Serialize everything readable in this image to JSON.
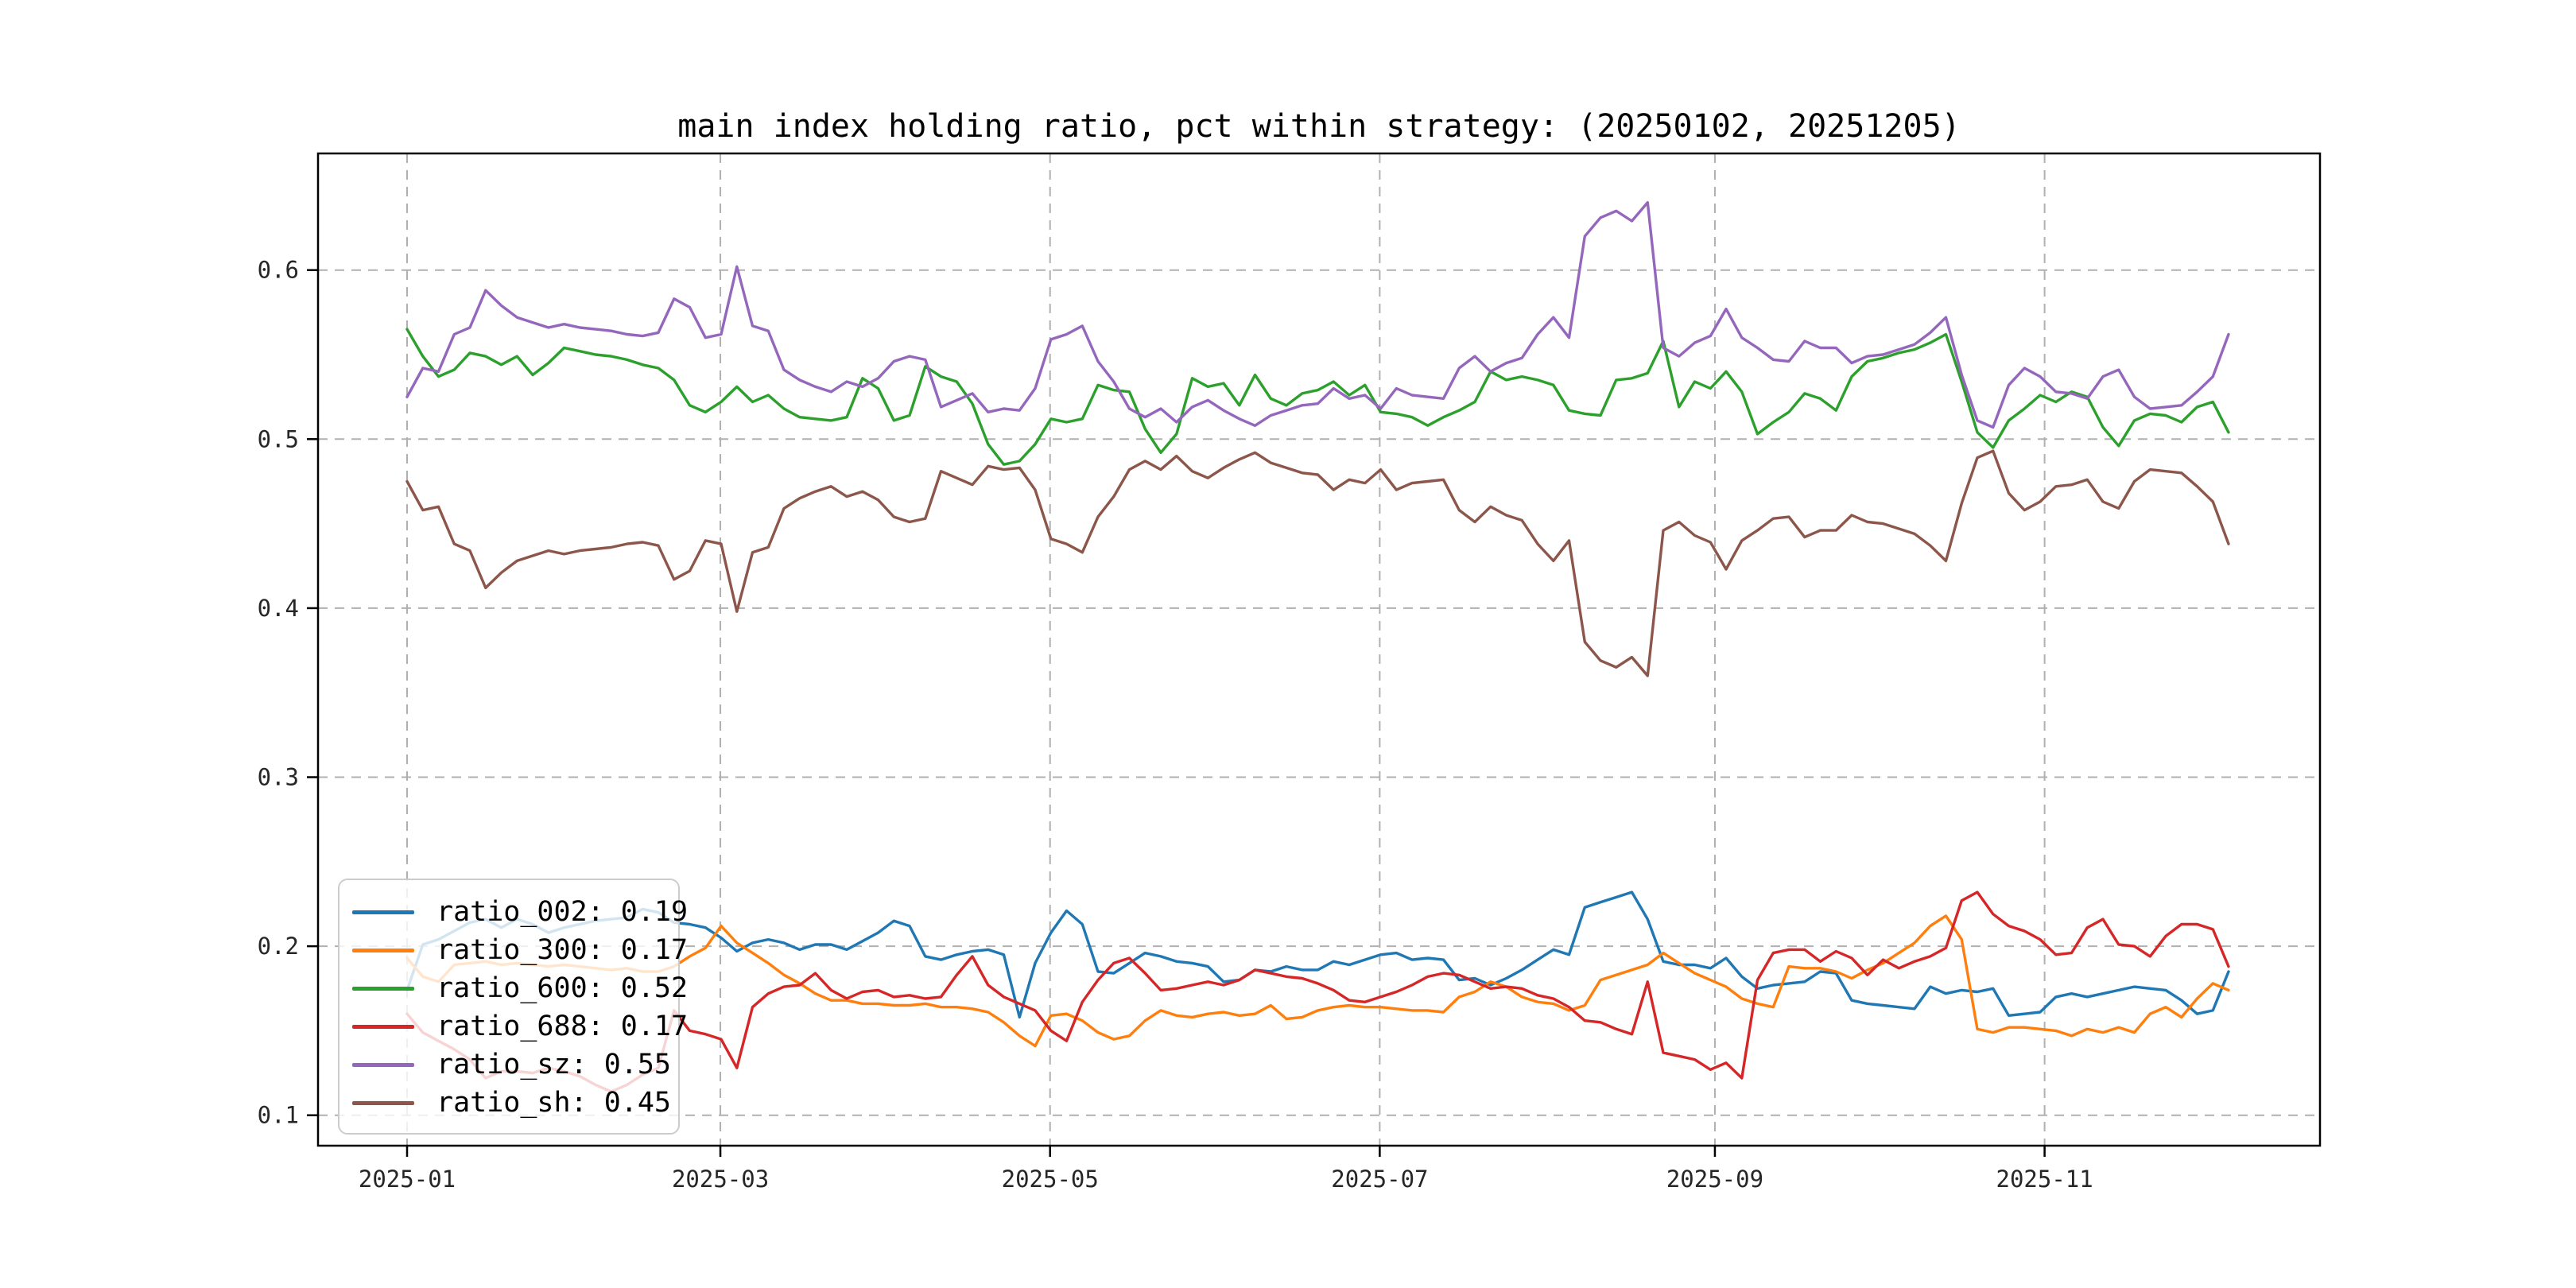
{
  "title": "main index holding ratio, pct within strategy: (20250102, 20251205)",
  "legend": {
    "position": "lower left",
    "items": [
      {
        "label": "ratio_002: 0.19",
        "color": "#1f77b4"
      },
      {
        "label": "ratio_300: 0.17",
        "color": "#ff7f0e"
      },
      {
        "label": "ratio_600: 0.52",
        "color": "#2ca02c"
      },
      {
        "label": "ratio_688: 0.17",
        "color": "#d62728"
      },
      {
        "label": "ratio_sz: 0.55",
        "color": "#9467bd"
      },
      {
        "label": "ratio_sh: 0.45",
        "color": "#8c564b"
      }
    ]
  },
  "chart_data": {
    "type": "line",
    "title": "main index holding ratio, pct within strategy: (20250102, 20251205)",
    "date_range": [
      "20250102",
      "20251205"
    ],
    "grid": true,
    "ylim": [
      0.082,
      0.669
    ],
    "y_ticks": [
      {
        "value": 0.1,
        "label": "0.1"
      },
      {
        "value": 0.2,
        "label": "0.2"
      },
      {
        "value": 0.3,
        "label": "0.3"
      },
      {
        "value": 0.4,
        "label": "0.4"
      },
      {
        "value": 0.5,
        "label": "0.5"
      },
      {
        "value": 0.6,
        "label": "0.6"
      }
    ],
    "x_ticks": [
      {
        "f": 0.0,
        "label": "2025-01"
      },
      {
        "f": 0.172,
        "label": "2025-03"
      },
      {
        "f": 0.353,
        "label": "2025-05"
      },
      {
        "f": 0.534,
        "label": "2025-07"
      },
      {
        "f": 0.718,
        "label": "2025-09"
      },
      {
        "f": 0.899,
        "label": "2025-11"
      }
    ],
    "series": [
      {
        "name": "ratio_002",
        "legend_label": "ratio_002: 0.19",
        "color": "#1f77b4",
        "values": [
          0.174,
          0.201,
          0.204,
          0.209,
          0.214,
          0.216,
          0.211,
          0.216,
          0.213,
          0.208,
          0.211,
          0.213,
          0.215,
          0.216,
          0.217,
          0.222,
          0.22,
          0.214,
          0.213,
          0.211,
          0.205,
          0.197,
          0.202,
          0.204,
          0.202,
          0.198,
          0.201,
          0.201,
          0.198,
          0.203,
          0.208,
          0.215,
          0.212,
          0.194,
          0.192,
          0.195,
          0.197,
          0.198,
          0.195,
          0.158,
          0.19,
          0.208,
          0.221,
          0.213,
          0.185,
          0.184,
          0.19,
          0.196,
          0.194,
          0.191,
          0.19,
          0.188,
          0.179,
          0.18,
          0.186,
          0.185,
          0.188,
          0.186,
          0.186,
          0.191,
          0.189,
          0.192,
          0.195,
          0.196,
          0.192,
          0.193,
          0.192,
          0.18,
          0.181,
          0.177,
          0.181,
          0.186,
          0.192,
          0.198,
          0.195,
          0.223,
          0.226,
          0.229,
          0.232,
          0.216,
          0.191,
          0.189,
          0.189,
          0.187,
          0.193,
          0.182,
          0.175,
          0.177,
          0.178,
          0.179,
          0.185,
          0.184,
          0.168,
          0.166,
          0.165,
          0.164,
          0.163,
          0.176,
          0.172,
          0.174,
          0.173,
          0.175,
          0.159,
          0.16,
          0.161,
          0.17,
          0.172,
          0.17,
          0.172,
          0.174,
          0.176,
          0.175,
          0.174,
          0.168,
          0.16,
          0.162,
          0.185
        ]
      },
      {
        "name": "ratio_300",
        "legend_label": "ratio_300: 0.17",
        "color": "#ff7f0e",
        "values": [
          0.193,
          0.182,
          0.179,
          0.189,
          0.19,
          0.191,
          0.189,
          0.19,
          0.189,
          0.188,
          0.189,
          0.188,
          0.187,
          0.186,
          0.187,
          0.185,
          0.185,
          0.188,
          0.194,
          0.199,
          0.212,
          0.202,
          0.196,
          0.19,
          0.183,
          0.178,
          0.172,
          0.168,
          0.168,
          0.166,
          0.166,
          0.165,
          0.165,
          0.166,
          0.164,
          0.164,
          0.163,
          0.161,
          0.155,
          0.147,
          0.141,
          0.159,
          0.16,
          0.156,
          0.149,
          0.145,
          0.147,
          0.156,
          0.162,
          0.159,
          0.158,
          0.16,
          0.161,
          0.159,
          0.16,
          0.165,
          0.157,
          0.158,
          0.162,
          0.164,
          0.165,
          0.164,
          0.164,
          0.163,
          0.162,
          0.162,
          0.161,
          0.17,
          0.173,
          0.179,
          0.176,
          0.17,
          0.167,
          0.166,
          0.162,
          0.165,
          0.18,
          0.183,
          0.186,
          0.189,
          0.196,
          0.19,
          0.184,
          0.18,
          0.176,
          0.169,
          0.166,
          0.164,
          0.188,
          0.187,
          0.187,
          0.185,
          0.181,
          0.186,
          0.19,
          0.196,
          0.202,
          0.212,
          0.218,
          0.204,
          0.151,
          0.149,
          0.152,
          0.152,
          0.151,
          0.15,
          0.147,
          0.151,
          0.149,
          0.152,
          0.149,
          0.16,
          0.164,
          0.158,
          0.169,
          0.178,
          0.174
        ]
      },
      {
        "name": "ratio_600",
        "legend_label": "ratio_600: 0.52",
        "color": "#2ca02c",
        "values": [
          0.565,
          0.549,
          0.537,
          0.541,
          0.551,
          0.549,
          0.544,
          0.549,
          0.538,
          0.545,
          0.554,
          0.552,
          0.55,
          0.549,
          0.547,
          0.544,
          0.542,
          0.535,
          0.52,
          0.516,
          0.522,
          0.531,
          0.522,
          0.526,
          0.518,
          0.513,
          0.512,
          0.511,
          0.513,
          0.536,
          0.53,
          0.511,
          0.514,
          0.543,
          0.537,
          0.534,
          0.521,
          0.497,
          0.485,
          0.487,
          0.497,
          0.512,
          0.51,
          0.512,
          0.532,
          0.529,
          0.528,
          0.506,
          0.492,
          0.503,
          0.536,
          0.531,
          0.533,
          0.52,
          0.538,
          0.524,
          0.52,
          0.527,
          0.529,
          0.534,
          0.526,
          0.532,
          0.516,
          0.515,
          0.513,
          0.508,
          0.513,
          0.517,
          0.522,
          0.54,
          0.535,
          0.537,
          0.535,
          0.532,
          0.517,
          0.515,
          0.514,
          0.535,
          0.536,
          0.539,
          0.558,
          0.519,
          0.534,
          0.53,
          0.54,
          0.528,
          0.503,
          0.51,
          0.516,
          0.527,
          0.524,
          0.517,
          0.537,
          0.546,
          0.548,
          0.551,
          0.553,
          0.557,
          0.562,
          0.534,
          0.504,
          0.495,
          0.511,
          0.518,
          0.526,
          0.522,
          0.528,
          0.525,
          0.507,
          0.496,
          0.511,
          0.515,
          0.514,
          0.51,
          0.519,
          0.522,
          0.504
        ]
      },
      {
        "name": "ratio_688",
        "legend_label": "ratio_688: 0.17",
        "color": "#d62728",
        "values": [
          0.16,
          0.149,
          0.144,
          0.139,
          0.133,
          0.122,
          0.126,
          0.126,
          0.125,
          0.128,
          0.126,
          0.123,
          0.118,
          0.114,
          0.118,
          0.124,
          0.128,
          0.162,
          0.15,
          0.148,
          0.145,
          0.128,
          0.164,
          0.172,
          0.176,
          0.177,
          0.184,
          0.174,
          0.169,
          0.173,
          0.174,
          0.17,
          0.171,
          0.169,
          0.17,
          0.183,
          0.194,
          0.177,
          0.17,
          0.166,
          0.162,
          0.15,
          0.144,
          0.167,
          0.18,
          0.19,
          0.193,
          0.184,
          0.174,
          0.175,
          0.177,
          0.179,
          0.177,
          0.18,
          0.186,
          0.184,
          0.182,
          0.181,
          0.178,
          0.174,
          0.168,
          0.167,
          0.17,
          0.173,
          0.177,
          0.182,
          0.184,
          0.183,
          0.179,
          0.175,
          0.176,
          0.175,
          0.171,
          0.169,
          0.164,
          0.156,
          0.155,
          0.151,
          0.148,
          0.179,
          0.137,
          0.135,
          0.133,
          0.127,
          0.131,
          0.122,
          0.18,
          0.196,
          0.198,
          0.198,
          0.191,
          0.197,
          0.193,
          0.183,
          0.192,
          0.187,
          0.191,
          0.194,
          0.199,
          0.227,
          0.232,
          0.219,
          0.212,
          0.209,
          0.204,
          0.195,
          0.196,
          0.211,
          0.216,
          0.201,
          0.2,
          0.194,
          0.206,
          0.213,
          0.213,
          0.21,
          0.188
        ]
      },
      {
        "name": "ratio_sz",
        "legend_label": "ratio_sz: 0.55",
        "color": "#9467bd",
        "values": [
          0.525,
          0.542,
          0.54,
          0.562,
          0.566,
          0.588,
          0.579,
          0.572,
          0.569,
          0.566,
          0.568,
          0.566,
          0.565,
          0.564,
          0.562,
          0.561,
          0.563,
          0.583,
          0.578,
          0.56,
          0.562,
          0.602,
          0.567,
          0.564,
          0.541,
          0.535,
          0.531,
          0.528,
          0.534,
          0.531,
          0.536,
          0.546,
          0.549,
          0.547,
          0.519,
          0.523,
          0.527,
          0.516,
          0.518,
          0.517,
          0.53,
          0.559,
          0.562,
          0.567,
          0.546,
          0.534,
          0.518,
          0.513,
          0.518,
          0.51,
          0.519,
          0.523,
          0.517,
          0.512,
          0.508,
          0.514,
          0.517,
          0.52,
          0.521,
          0.53,
          0.524,
          0.526,
          0.518,
          0.53,
          0.526,
          0.525,
          0.524,
          0.542,
          0.549,
          0.54,
          0.545,
          0.548,
          0.562,
          0.572,
          0.56,
          0.62,
          0.631,
          0.635,
          0.629,
          0.64,
          0.554,
          0.549,
          0.557,
          0.561,
          0.577,
          0.56,
          0.554,
          0.547,
          0.546,
          0.558,
          0.554,
          0.554,
          0.545,
          0.549,
          0.55,
          0.553,
          0.556,
          0.563,
          0.572,
          0.538,
          0.511,
          0.507,
          0.532,
          0.542,
          0.537,
          0.528,
          0.527,
          0.524,
          0.537,
          0.541,
          0.525,
          0.518,
          0.519,
          0.52,
          0.528,
          0.537,
          0.562
        ]
      },
      {
        "name": "ratio_sh",
        "legend_label": "ratio_sh: 0.45",
        "color": "#8c564b",
        "values": [
          0.475,
          0.458,
          0.46,
          0.438,
          0.434,
          0.412,
          0.421,
          0.428,
          0.431,
          0.434,
          0.432,
          0.434,
          0.435,
          0.436,
          0.438,
          0.439,
          0.437,
          0.417,
          0.422,
          0.44,
          0.438,
          0.398,
          0.433,
          0.436,
          0.459,
          0.465,
          0.469,
          0.472,
          0.466,
          0.469,
          0.464,
          0.454,
          0.451,
          0.453,
          0.481,
          0.477,
          0.473,
          0.484,
          0.482,
          0.483,
          0.47,
          0.441,
          0.438,
          0.433,
          0.454,
          0.466,
          0.482,
          0.487,
          0.482,
          0.49,
          0.481,
          0.477,
          0.483,
          0.488,
          0.492,
          0.486,
          0.483,
          0.48,
          0.479,
          0.47,
          0.476,
          0.474,
          0.482,
          0.47,
          0.474,
          0.475,
          0.476,
          0.458,
          0.451,
          0.46,
          0.455,
          0.452,
          0.438,
          0.428,
          0.44,
          0.38,
          0.369,
          0.365,
          0.371,
          0.36,
          0.446,
          0.451,
          0.443,
          0.439,
          0.423,
          0.44,
          0.446,
          0.453,
          0.454,
          0.442,
          0.446,
          0.446,
          0.455,
          0.451,
          0.45,
          0.447,
          0.444,
          0.437,
          0.428,
          0.462,
          0.489,
          0.493,
          0.468,
          0.458,
          0.463,
          0.472,
          0.473,
          0.476,
          0.463,
          0.459,
          0.475,
          0.482,
          0.481,
          0.48,
          0.472,
          0.463,
          0.438
        ]
      }
    ]
  },
  "style": {
    "grid_color": "#b0b0b0",
    "spine_color": "#000000",
    "tick_label_color": "#262626",
    "legend_border_color": "#cccccc"
  }
}
